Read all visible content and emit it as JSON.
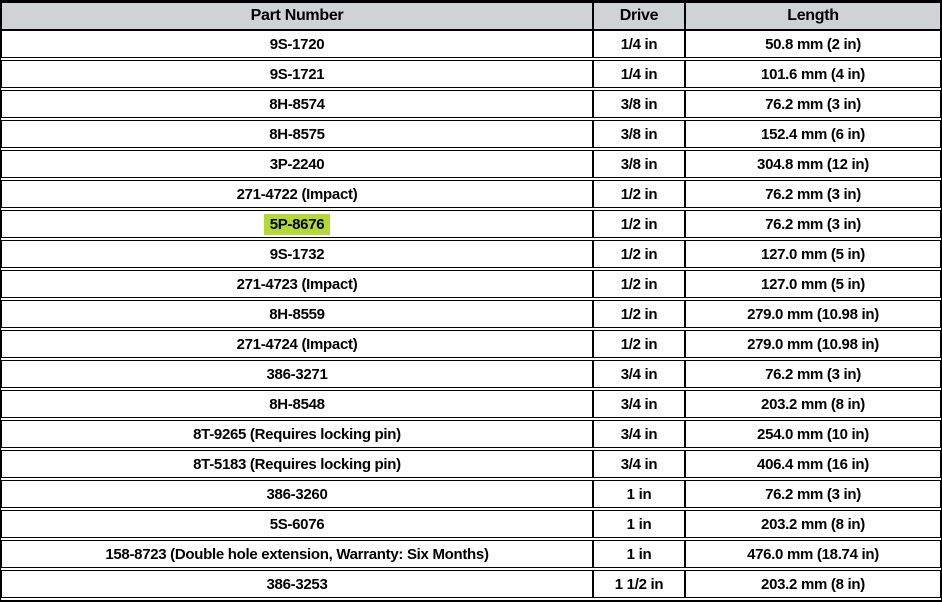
{
  "table": {
    "columns": [
      {
        "label": "Part Number"
      },
      {
        "label": "Drive"
      },
      {
        "label": "Length"
      }
    ],
    "rows": [
      {
        "part": "9S-1720",
        "drive": "1/4 in",
        "length": "50.8 mm (2 in)",
        "highlight": false
      },
      {
        "part": "9S-1721",
        "drive": "1/4 in",
        "length": "101.6 mm (4 in)",
        "highlight": false
      },
      {
        "part": "8H-8574",
        "drive": "3/8 in",
        "length": "76.2 mm (3 in)",
        "highlight": false
      },
      {
        "part": "8H-8575",
        "drive": "3/8 in",
        "length": "152.4 mm (6 in)",
        "highlight": false
      },
      {
        "part": "3P-2240",
        "drive": "3/8 in",
        "length": "304.8 mm (12 in)",
        "highlight": false
      },
      {
        "part": "271-4722 (Impact)",
        "drive": "1/2 in",
        "length": "76.2 mm (3 in)",
        "highlight": false
      },
      {
        "part": "5P-8676",
        "drive": "1/2 in",
        "length": "76.2 mm (3 in)",
        "highlight": true
      },
      {
        "part": "9S-1732",
        "drive": "1/2 in",
        "length": "127.0 mm (5 in)",
        "highlight": false
      },
      {
        "part": "271-4723 (Impact)",
        "drive": "1/2 in",
        "length": "127.0 mm (5 in)",
        "highlight": false
      },
      {
        "part": "8H-8559",
        "drive": "1/2 in",
        "length": "279.0 mm (10.98 in)",
        "highlight": false
      },
      {
        "part": "271-4724 (Impact)",
        "drive": "1/2 in",
        "length": "279.0 mm (10.98 in)",
        "highlight": false
      },
      {
        "part": "386-3271",
        "drive": "3/4 in",
        "length": "76.2 mm (3 in)",
        "highlight": false
      },
      {
        "part": "8H-8548",
        "drive": "3/4 in",
        "length": "203.2 mm (8 in)",
        "highlight": false
      },
      {
        "part": "8T-9265 (Requires locking pin)",
        "drive": "3/4 in",
        "length": "254.0 mm (10 in)",
        "highlight": false
      },
      {
        "part": "8T-5183 (Requires locking pin)",
        "drive": "3/4 in",
        "length": "406.4 mm (16 in)",
        "highlight": false
      },
      {
        "part": "386-3260",
        "drive": "1 in",
        "length": "76.2 mm (3 in)",
        "highlight": false
      },
      {
        "part": "5S-6076",
        "drive": "1 in",
        "length": "203.2 mm (8 in)",
        "highlight": false
      },
      {
        "part": "158-8723 (Double hole extension, Warranty: Six Months)",
        "drive": "1 in",
        "length": "476.0 mm (18.74 in)",
        "highlight": false
      },
      {
        "part": "386-3253",
        "drive": "1 1/2 in",
        "length": "203.2 mm (8 in)",
        "highlight": false
      }
    ],
    "colors": {
      "header_bg": "#d0d3d3",
      "highlight_bg": "#b2d936",
      "border": "#000000"
    }
  }
}
